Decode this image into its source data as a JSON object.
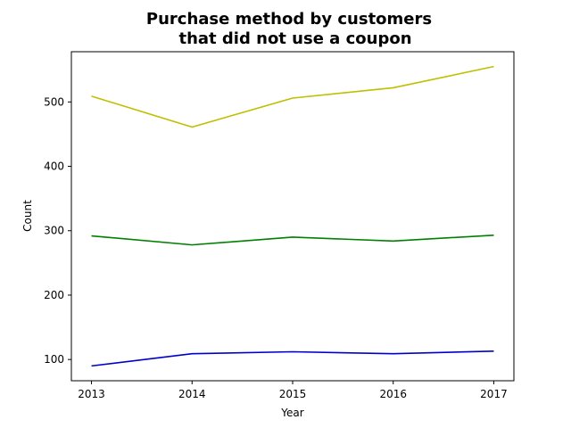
{
  "chart_data": {
    "type": "line",
    "title_lines": [
      "Purchase method by customers",
      "that did not use a coupon"
    ],
    "xlabel": "Year",
    "ylabel": "Count",
    "x": [
      2013,
      2014,
      2015,
      2016,
      2017
    ],
    "x_ticks": [
      "2013",
      "2014",
      "2015",
      "2016",
      "2017"
    ],
    "y_ticks": [
      100,
      200,
      300,
      400,
      500
    ],
    "xlim": [
      2012.8,
      2017.2
    ],
    "ylim": [
      67,
      578
    ],
    "grid": false,
    "series": [
      {
        "color": "#bfbf00",
        "values": [
          509,
          461,
          506,
          522,
          555
        ]
      },
      {
        "color": "#008000",
        "values": [
          292,
          278,
          290,
          284,
          293
        ]
      },
      {
        "color": "#0000cc",
        "values": [
          90,
          109,
          112,
          109,
          113
        ]
      }
    ]
  }
}
